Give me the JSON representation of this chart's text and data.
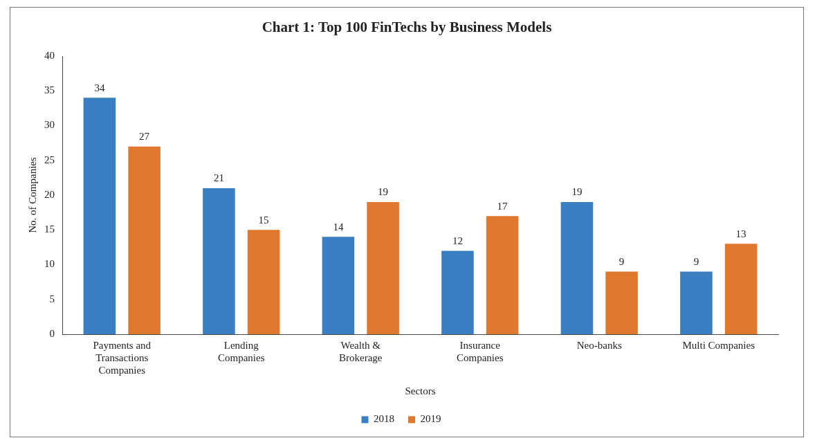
{
  "chart_data": {
    "type": "bar",
    "title": "Chart 1: Top 100 FinTechs by Business Models",
    "xlabel": "Sectors",
    "ylabel": "No. of Companies",
    "categories": [
      "Payments and Transactions Companies",
      "Lending Companies",
      "Wealth & Brokerage",
      "Insurance Companies",
      "Neo-banks",
      "Multi Companies"
    ],
    "series": [
      {
        "name": "2018",
        "color": "#3a7fc1",
        "values": [
          34,
          21,
          14,
          12,
          19,
          9
        ]
      },
      {
        "name": "2019",
        "color": "#e0782f",
        "values": [
          27,
          15,
          19,
          17,
          9,
          13
        ]
      }
    ],
    "ylim": [
      0,
      40
    ],
    "yticks": [
      0,
      5,
      10,
      15,
      20,
      25,
      30,
      35,
      40
    ],
    "grid": false,
    "legend": "bottom",
    "data_labels": true
  }
}
